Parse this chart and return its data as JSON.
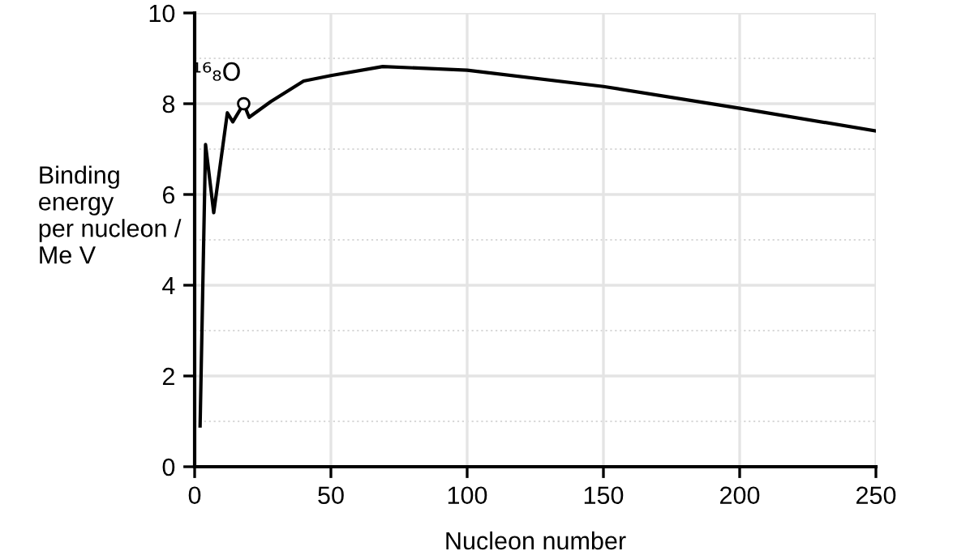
{
  "chart_data": {
    "type": "line",
    "xlabel": "Nucleon number",
    "ylabel": "Binding\nenergy\nper nucleon /\nMe V",
    "x": [
      2,
      4,
      7,
      12,
      14,
      18,
      20,
      28,
      40,
      50,
      69,
      100,
      150,
      200,
      250
    ],
    "series": [
      {
        "color": "#000000",
        "values": [
          0.9,
          7.1,
          5.6,
          7.8,
          7.6,
          8.0,
          7.7,
          8.05,
          8.5,
          8.62,
          8.82,
          8.74,
          8.38,
          7.9,
          7.4
        ]
      }
    ],
    "annotations": [
      {
        "text": "¹⁶₈O",
        "x": 18,
        "y": 8.0
      }
    ],
    "xlim": [
      0,
      250
    ],
    "xticks": [
      0,
      50,
      100,
      150,
      200,
      250
    ],
    "ylim": [
      0,
      10
    ],
    "yticks": [
      0,
      2,
      4,
      6,
      8,
      10
    ],
    "grid": true,
    "legend": false,
    "marker": "none",
    "line_style": "solid"
  }
}
